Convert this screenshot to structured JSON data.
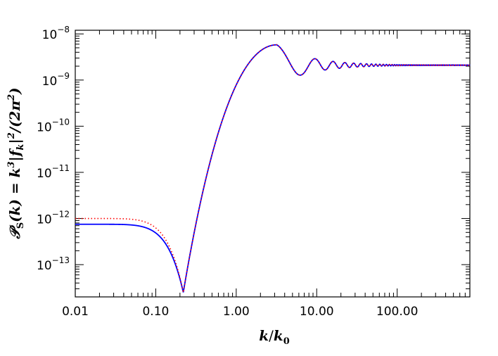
{
  "chart_data": {
    "type": "line",
    "title": "",
    "xlabel": {
      "base": "k",
      "sep": "/",
      "den": "k",
      "den_sub": "0"
    },
    "ylabel": {
      "p1": "𝒫",
      "p1_sub": "S",
      "p2": "(k) = k",
      "p2_sup": "3",
      "p3": "|f",
      "p3_sub": "k",
      "p4": "|",
      "p4_sup": "2",
      "p5": "/(2π",
      "p5_sup": "2",
      "p6": ")"
    },
    "x_scale": "log",
    "y_scale": "log",
    "xlim": [
      0.01,
      800
    ],
    "ylim": [
      2e-14,
      1.2e-08
    ],
    "x_ticks": [
      {
        "value": 0.01,
        "label": "0.01"
      },
      {
        "value": 0.1,
        "label": "0.10"
      },
      {
        "value": 1,
        "label": "1.00"
      },
      {
        "value": 10,
        "label": "10.00"
      },
      {
        "value": 100,
        "label": "100.00"
      }
    ],
    "y_ticks": [
      {
        "exp": -13,
        "base": "10",
        "sup": "−13"
      },
      {
        "exp": -12,
        "base": "10",
        "sup": "−12"
      },
      {
        "exp": -11,
        "base": "10",
        "sup": "−11"
      },
      {
        "exp": -10,
        "base": "10",
        "sup": "−10"
      },
      {
        "exp": -9,
        "base": "10",
        "sup": "−9"
      },
      {
        "exp": -8,
        "base": "10",
        "sup": "−8"
      }
    ],
    "grid": false,
    "series": [
      {
        "style": "solid",
        "color": "#0000ff",
        "low_k_plateau": 7.5e-13,
        "dip": {
          "k": 0.22,
          "value": 2.5e-14
        },
        "peak": {
          "k": 3.2,
          "value": 5.8e-09
        },
        "first_trough": {
          "k": 5.3,
          "value": 1.2e-09
        },
        "high_k_asymptote": 2.1e-09
      },
      {
        "style": "dotted",
        "color": "#ff0000",
        "low_k_plateau": 1e-12,
        "dip": {
          "k": 0.22,
          "value": 2.5e-14
        },
        "peak": {
          "k": 3.2,
          "value": 5.8e-09
        },
        "first_trough": {
          "k": 5.3,
          "value": 1.2e-09
        },
        "high_k_asymptote": 2.1e-09
      }
    ]
  }
}
